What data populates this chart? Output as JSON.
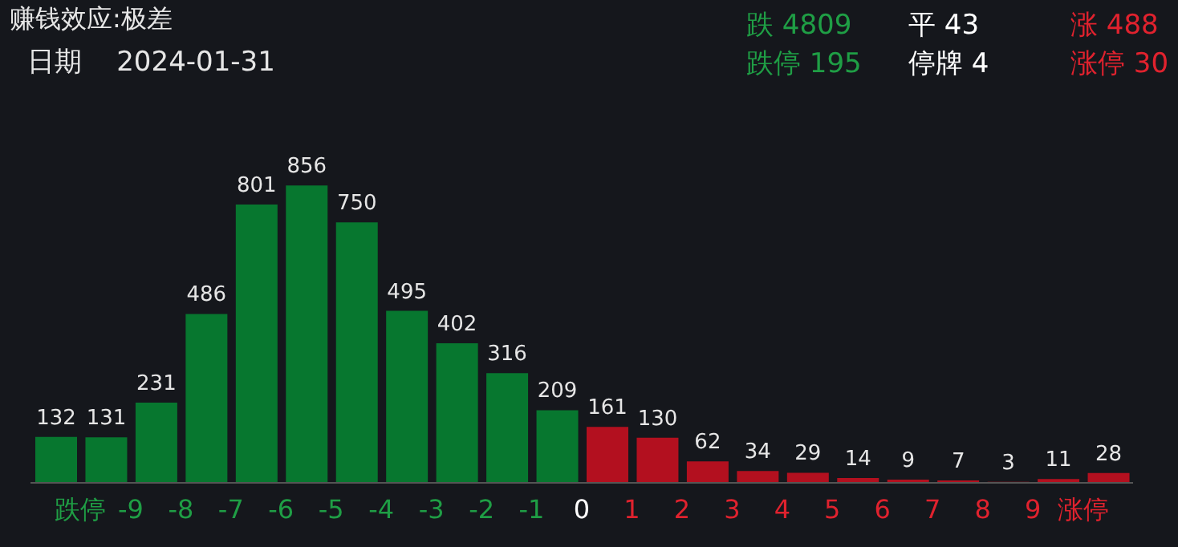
{
  "chart_data": {
    "type": "bar",
    "title": "赚钱效应:极差",
    "subtitle": "日期    2024-01-31",
    "annotations": [
      "跌 4809",
      "平 43",
      "涨 488",
      "跌停 195",
      "停牌 4",
      "涨停 30"
    ],
    "x": [
      -10.5,
      -9.5,
      -8.5,
      -7.5,
      -6.5,
      -5.5,
      -4.5,
      -3.5,
      -2.5,
      -1.5,
      -0.5,
      0.5,
      1.5,
      2.5,
      3.5,
      4.5,
      5.5,
      6.5,
      7.5,
      8.5,
      9.5,
      10.5
    ],
    "values": [
      132,
      131,
      231,
      486,
      801,
      856,
      750,
      495,
      402,
      316,
      209,
      161,
      130,
      62,
      34,
      29,
      14,
      9,
      7,
      3,
      11,
      28
    ],
    "colors": [
      "#07772f",
      "#07772f",
      "#07772f",
      "#07772f",
      "#07772f",
      "#07772f",
      "#07772f",
      "#07772f",
      "#07772f",
      "#07772f",
      "#07772f",
      "#b3101f",
      "#b3101f",
      "#b3101f",
      "#b3101f",
      "#b3101f",
      "#b3101f",
      "#b3101f",
      "#b3101f",
      "#b3101f",
      "#b3101f",
      "#b3101f"
    ],
    "xlim": [
      -11,
      11
    ],
    "xticks": [
      {
        "value": -10,
        "label": "跌停"
      },
      -9,
      -8,
      -7,
      -6,
      -5,
      -4,
      -3,
      -2,
      -1,
      0,
      1,
      2,
      3,
      4,
      5,
      6,
      7,
      8,
      9,
      {
        "value": 10,
        "label": "涨停"
      }
    ],
    "tick_labels": "x",
    "data_labels": true,
    "grid": false,
    "legend": false
  }
}
